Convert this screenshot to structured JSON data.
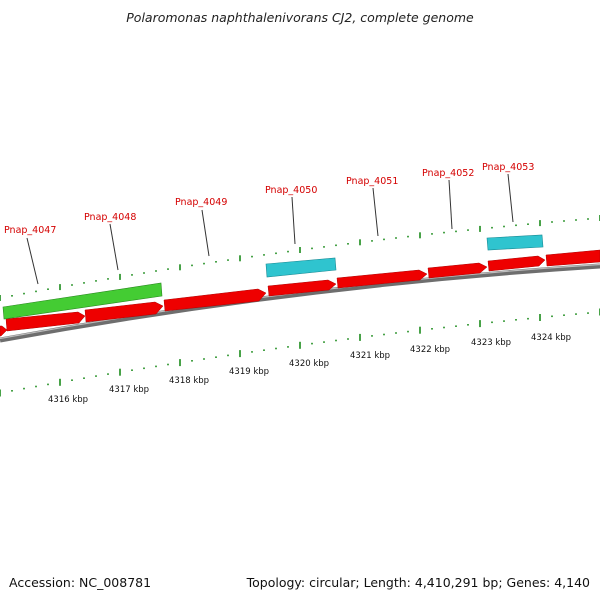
{
  "title": "Polaromonas naphthalenivorans CJ2, complete genome",
  "footer": {
    "accession": "Accession: NC_008781",
    "summary": "Topology: circular; Length: 4,410,291 bp; Genes: 4,140"
  },
  "colors": {
    "gene_label": "#d40000",
    "cds_forward": "#ee0000",
    "rrna_trna": "#2fc4cf",
    "long_feature": "#44cc33",
    "backbone": "#888888",
    "tick": "#1a8a1a"
  },
  "gene_labels": [
    {
      "text": "Pnap_4047"
    },
    {
      "text": "Pnap_4048"
    },
    {
      "text": "Pnap_4049"
    },
    {
      "text": "Pnap_4050"
    },
    {
      "text": "Pnap_4051"
    },
    {
      "text": "Pnap_4052"
    },
    {
      "text": "Pnap_4053"
    }
  ],
  "kbp_labels": [
    "4316 kbp",
    "4317 kbp",
    "4318 kbp",
    "4319 kbp",
    "4320 kbp",
    "4321 kbp",
    "4322 kbp",
    "4323 kbp",
    "4324 kbp"
  ]
}
